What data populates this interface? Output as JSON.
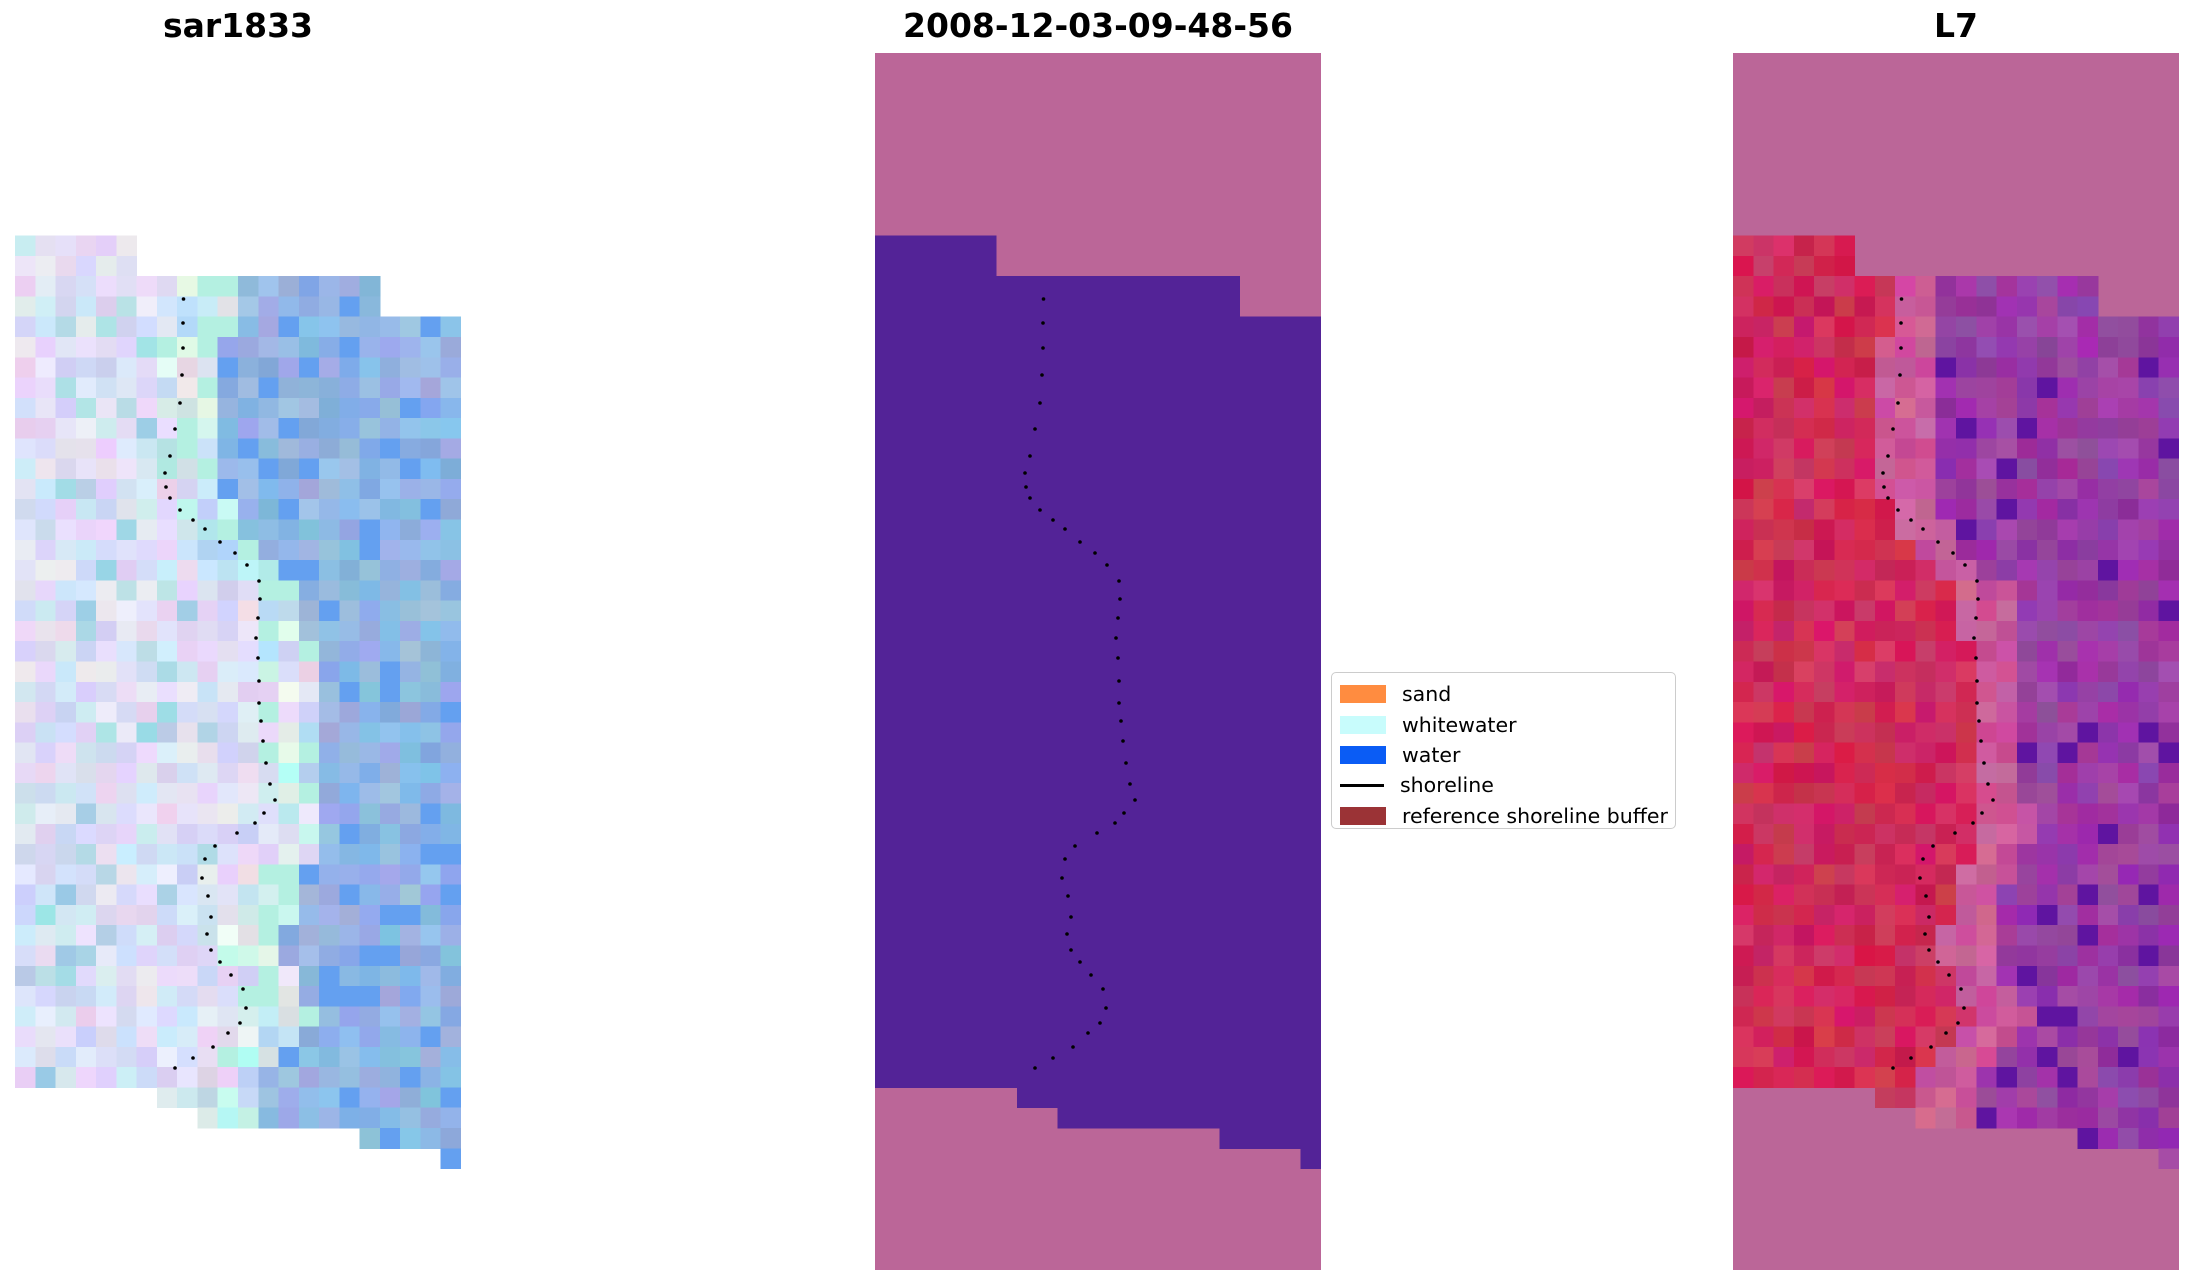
{
  "panels": [
    {
      "title": "sar1833"
    },
    {
      "title": "2008-12-03-09-48-56"
    },
    {
      "title": "L7"
    }
  ],
  "legend": {
    "items": [
      {
        "label": "sand",
        "color": "#ff8c40",
        "kind": "patch"
      },
      {
        "label": "whitewater",
        "color": "#c8fcfc",
        "kind": "patch"
      },
      {
        "label": "water",
        "color": "#0a5cf5",
        "kind": "patch"
      },
      {
        "label": "shoreline",
        "color": "#000000",
        "kind": "line"
      },
      {
        "label": "reference shoreline buffer",
        "color": "#9b3336",
        "kind": "patch"
      }
    ]
  },
  "colors": {
    "outside_area": "#bb6698",
    "classified_area": "#532397",
    "shoreline_points": "#000000"
  }
}
